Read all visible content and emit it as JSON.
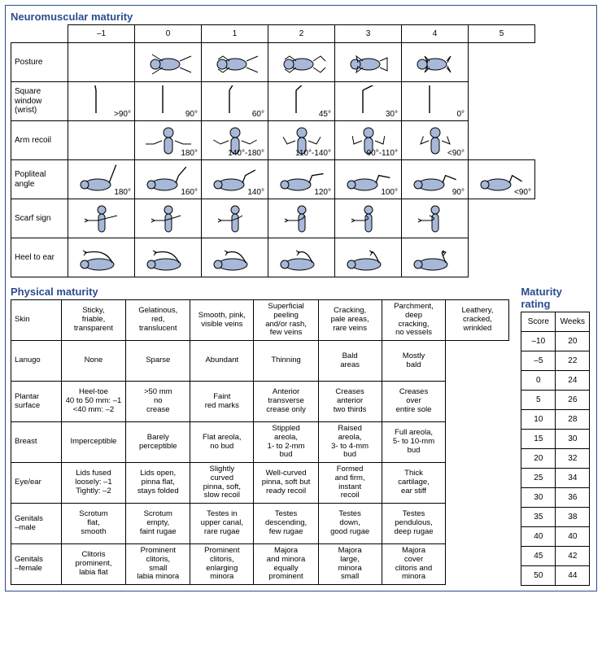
{
  "colors": {
    "title": "#2a4d8f",
    "fill": "#a7b8d8",
    "stroke": "#000000",
    "border": "#000000",
    "bg": "#ffffff"
  },
  "neuro": {
    "title": "Neuromuscular maturity",
    "scores": [
      "–1",
      "0",
      "1",
      "2",
      "3",
      "4",
      "5"
    ],
    "rows": [
      {
        "key": "posture",
        "label": "Posture"
      },
      {
        "key": "square",
        "label": "Square\nwindow\n(wrist)"
      },
      {
        "key": "arm",
        "label": "Arm recoil"
      },
      {
        "key": "pop",
        "label": "Popliteal\nangle"
      },
      {
        "key": "scarf",
        "label": "Scarf sign"
      },
      {
        "key": "heel",
        "label": "Heel to ear"
      }
    ],
    "labels": {
      "square": [
        ">90°",
        "90°",
        "60°",
        "45°",
        "30°",
        "0°",
        ""
      ],
      "arm": [
        "",
        "180°",
        "140°-180°",
        "110°-140°",
        "90°-110°",
        "<90°",
        ""
      ],
      "pop": [
        "180°",
        "160°",
        "140°",
        "120°",
        "100°",
        "90°",
        "<90°"
      ]
    }
  },
  "physical": {
    "title": "Physical maturity",
    "rows": [
      {
        "label": "Skin",
        "cells": [
          "Sticky,\nfriable,\ntransparent",
          "Gelatinous,\nred,\ntranslucent",
          "Smooth, pink,\nvisible veins",
          "Superficial\npeeling\nand/or rash,\nfew veins",
          "Cracking,\npale areas,\nrare veins",
          "Parchment,\ndeep\ncracking,\nno vessels",
          "Leathery,\ncracked,\nwrinkled"
        ]
      },
      {
        "label": "Lanugo",
        "cells": [
          "None",
          "Sparse",
          "Abundant",
          "Thinning",
          "Bald\nareas",
          "Mostly\nbald",
          ""
        ]
      },
      {
        "label": "Plantar\nsurface",
        "cells": [
          "Heel-toe\n40 to 50 mm: –1\n<40 mm: –2",
          ">50 mm\nno\ncrease",
          "Faint\nred marks",
          "Anterior\ntransverse\ncrease only",
          "Creases\nanterior\ntwo thirds",
          "Creases\nover\nentire sole",
          ""
        ]
      },
      {
        "label": "Breast",
        "cells": [
          "Imperceptible",
          "Barely\nperceptible",
          "Flat areola,\nno bud",
          "Stippled\nareola,\n1- to 2-mm\nbud",
          "Raised\nareola,\n3- to 4-mm\nbud",
          "Full areola,\n5- to 10-mm\nbud",
          ""
        ]
      },
      {
        "label": "Eye/ear",
        "cells": [
          "Lids fused\nloosely: –1\nTightly: –2",
          "Lids open,\npinna flat,\nstays folded",
          "Slightly\ncurved\npinna, soft,\nslow recoil",
          "Well-curved\npinna, soft but\nready recoil",
          "Formed\nand firm,\ninstant\nrecoil",
          "Thick\ncartilage,\near stiff",
          ""
        ]
      },
      {
        "label": "Genitals\n–male",
        "cells": [
          "Scrotum\nflat,\nsmooth",
          "Scrotum\nempty,\nfaint rugae",
          "Testes in\nupper canal,\nrare rugae",
          "Testes\ndescending,\nfew rugae",
          "Testes\ndown,\ngood rugae",
          "Testes\npendulous,\ndeep rugae",
          ""
        ]
      },
      {
        "label": "Genitals\n–female",
        "cells": [
          "Clitoris\nprominent,\nlabia flat",
          "Prominent\nclitoris,\nsmall\nlabia minora",
          "Prominent\nclitoris,\nenlarging\nminora",
          "Majora\nand minora\nequally\nprominent",
          "Majora\nlarge,\nminora\nsmall",
          "Majora\ncover\nclitoris and\nminora",
          ""
        ]
      }
    ]
  },
  "rating": {
    "title": "Maturity rating",
    "head": [
      "Score",
      "Weeks"
    ],
    "rows": [
      [
        "–10",
        "20"
      ],
      [
        "–5",
        "22"
      ],
      [
        "0",
        "24"
      ],
      [
        "5",
        "26"
      ],
      [
        "10",
        "28"
      ],
      [
        "15",
        "30"
      ],
      [
        "20",
        "32"
      ],
      [
        "25",
        "34"
      ],
      [
        "30",
        "36"
      ],
      [
        "35",
        "38"
      ],
      [
        "40",
        "40"
      ],
      [
        "45",
        "42"
      ],
      [
        "50",
        "44"
      ]
    ]
  }
}
